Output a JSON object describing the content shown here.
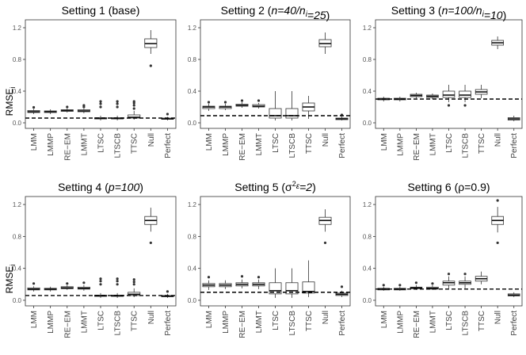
{
  "figure": {
    "ylabel_main": "RMSE",
    "ylabel_sub": "i"
  },
  "chart_data": [
    {
      "type": "boxplot",
      "title_parts": [
        {
          "t": "Setting 1 (base)",
          "s": "n"
        }
      ],
      "categories": [
        "LMM",
        "LMMP",
        "RE−EM",
        "LMMT",
        "LTSC",
        "LTSCB",
        "TTSC",
        "Null",
        "Perfect"
      ],
      "yticks": [
        "0.0",
        "0.4",
        "0.8",
        "1.2"
      ],
      "ylim": [
        -0.07,
        1.3
      ],
      "reference_line": 0.06,
      "boxes": [
        {
          "lo": 0.11,
          "q1": 0.13,
          "med": 0.14,
          "q3": 0.155,
          "hi": 0.175,
          "out": [
            0.195
          ]
        },
        {
          "lo": 0.11,
          "q1": 0.13,
          "med": 0.14,
          "q3": 0.15,
          "hi": 0.17,
          "out": []
        },
        {
          "lo": 0.13,
          "q1": 0.145,
          "med": 0.155,
          "q3": 0.165,
          "hi": 0.18,
          "out": [
            0.2
          ]
        },
        {
          "lo": 0.12,
          "q1": 0.14,
          "med": 0.15,
          "q3": 0.165,
          "hi": 0.18,
          "out": [
            0.2,
            0.22
          ]
        },
        {
          "lo": 0.03,
          "q1": 0.05,
          "med": 0.055,
          "q3": 0.065,
          "hi": 0.09,
          "out": [
            0.2,
            0.24,
            0.27
          ]
        },
        {
          "lo": 0.03,
          "q1": 0.05,
          "med": 0.055,
          "q3": 0.065,
          "hi": 0.09,
          "out": [
            0.2,
            0.24,
            0.27
          ]
        },
        {
          "lo": 0.04,
          "q1": 0.06,
          "med": 0.07,
          "q3": 0.1,
          "hi": 0.15,
          "out": [
            0.18,
            0.22,
            0.25,
            0.27
          ]
        },
        {
          "lo": 0.87,
          "q1": 0.95,
          "med": 1.0,
          "q3": 1.06,
          "hi": 1.17,
          "out": [
            0.72
          ]
        },
        {
          "lo": 0.03,
          "q1": 0.045,
          "med": 0.05,
          "q3": 0.06,
          "hi": 0.075,
          "out": [
            0.11
          ]
        }
      ]
    },
    {
      "type": "boxplot",
      "title_parts": [
        {
          "t": "Setting 2 (",
          "s": "n"
        },
        {
          "t": "n=40/n",
          "s": "i"
        },
        {
          "t": "i",
          "s": "sub"
        },
        {
          "t": "=25",
          "s": "i"
        },
        {
          "t": ")",
          "s": "n"
        }
      ],
      "categories": [
        "LMM",
        "LMMP",
        "RE−EM",
        "LMMT",
        "LTSC",
        "LTSCB",
        "TTSC",
        "Null",
        "Perfect"
      ],
      "yticks": [
        "0.0",
        "0.4",
        "0.8",
        "1.2"
      ],
      "ylim": [
        -0.07,
        1.3
      ],
      "reference_line": 0.09,
      "boxes": [
        {
          "lo": 0.15,
          "q1": 0.18,
          "med": 0.2,
          "q3": 0.21,
          "hi": 0.24,
          "out": [
            0.26
          ]
        },
        {
          "lo": 0.16,
          "q1": 0.18,
          "med": 0.2,
          "q3": 0.21,
          "hi": 0.24,
          "out": [
            0.26
          ]
        },
        {
          "lo": 0.19,
          "q1": 0.21,
          "med": 0.22,
          "q3": 0.235,
          "hi": 0.26,
          "out": [
            0.28
          ]
        },
        {
          "lo": 0.18,
          "q1": 0.2,
          "med": 0.21,
          "q3": 0.23,
          "hi": 0.25,
          "out": [
            0.28
          ]
        },
        {
          "lo": 0.03,
          "q1": 0.06,
          "med": 0.09,
          "q3": 0.18,
          "hi": 0.4,
          "out": []
        },
        {
          "lo": 0.03,
          "q1": 0.06,
          "med": 0.09,
          "q3": 0.18,
          "hi": 0.4,
          "out": []
        },
        {
          "lo": 0.05,
          "q1": 0.15,
          "med": 0.2,
          "q3": 0.25,
          "hi": 0.34,
          "out": []
        },
        {
          "lo": 0.87,
          "q1": 0.96,
          "med": 1.0,
          "q3": 1.05,
          "hi": 1.14,
          "out": []
        },
        {
          "lo": 0.03,
          "q1": 0.04,
          "med": 0.05,
          "q3": 0.06,
          "hi": 0.08,
          "out": [
            0.1
          ]
        }
      ]
    },
    {
      "type": "boxplot",
      "title_parts": [
        {
          "t": "Setting 3 (",
          "s": "n"
        },
        {
          "t": "n=100/n",
          "s": "i"
        },
        {
          "t": "i",
          "s": "sub"
        },
        {
          "t": "=10",
          "s": "i"
        },
        {
          "t": ")",
          "s": "n"
        }
      ],
      "categories": [
        "LMM",
        "LMMP",
        "RE−EM",
        "LMMT",
        "LTSC",
        "LTSCB",
        "TTSC",
        "Null",
        "Perfect"
      ],
      "yticks": [
        "0.0",
        "0.4",
        "0.8",
        "1.2"
      ],
      "ylim": [
        -0.07,
        1.3
      ],
      "reference_line": 0.3,
      "boxes": [
        {
          "lo": 0.27,
          "q1": 0.29,
          "med": 0.3,
          "q3": 0.31,
          "hi": 0.33,
          "out": []
        },
        {
          "lo": 0.27,
          "q1": 0.29,
          "med": 0.3,
          "q3": 0.31,
          "hi": 0.33,
          "out": []
        },
        {
          "lo": 0.31,
          "q1": 0.33,
          "med": 0.345,
          "q3": 0.36,
          "hi": 0.38,
          "out": []
        },
        {
          "lo": 0.3,
          "q1": 0.32,
          "med": 0.335,
          "q3": 0.35,
          "hi": 0.37,
          "out": []
        },
        {
          "lo": 0.26,
          "q1": 0.32,
          "med": 0.35,
          "q3": 0.4,
          "hi": 0.48,
          "out": [
            0.22
          ]
        },
        {
          "lo": 0.26,
          "q1": 0.32,
          "med": 0.35,
          "q3": 0.4,
          "hi": 0.48,
          "out": [
            0.22
          ]
        },
        {
          "lo": 0.31,
          "q1": 0.36,
          "med": 0.39,
          "q3": 0.42,
          "hi": 0.48,
          "out": []
        },
        {
          "lo": 0.93,
          "q1": 0.98,
          "med": 1.01,
          "q3": 1.04,
          "hi": 1.09,
          "out": []
        },
        {
          "lo": 0.02,
          "q1": 0.035,
          "med": 0.05,
          "q3": 0.065,
          "hi": 0.09,
          "out": []
        }
      ]
    },
    {
      "type": "boxplot",
      "title_parts": [
        {
          "t": "Setting 4 (",
          "s": "n"
        },
        {
          "t": "p=100",
          "s": "i"
        },
        {
          "t": ")",
          "s": "n"
        }
      ],
      "categories": [
        "LMM",
        "LMMP",
        "RE−EM",
        "LMMT",
        "LTSC",
        "LTSCB",
        "TTSC",
        "Null",
        "Perfect"
      ],
      "yticks": [
        "0.0",
        "0.4",
        "0.8",
        "1.2"
      ],
      "ylim": [
        -0.07,
        1.3
      ],
      "reference_line": 0.06,
      "boxes": [
        {
          "lo": 0.11,
          "q1": 0.13,
          "med": 0.14,
          "q3": 0.155,
          "hi": 0.175,
          "out": [
            0.21
          ]
        },
        {
          "lo": 0.11,
          "q1": 0.13,
          "med": 0.14,
          "q3": 0.15,
          "hi": 0.17,
          "out": []
        },
        {
          "lo": 0.13,
          "q1": 0.145,
          "med": 0.155,
          "q3": 0.17,
          "hi": 0.19,
          "out": [
            0.21
          ]
        },
        {
          "lo": 0.12,
          "q1": 0.14,
          "med": 0.15,
          "q3": 0.165,
          "hi": 0.19,
          "out": [
            0.22
          ]
        },
        {
          "lo": 0.03,
          "q1": 0.05,
          "med": 0.055,
          "q3": 0.065,
          "hi": 0.09,
          "out": [
            0.2,
            0.24,
            0.27
          ]
        },
        {
          "lo": 0.03,
          "q1": 0.05,
          "med": 0.055,
          "q3": 0.065,
          "hi": 0.09,
          "out": [
            0.2,
            0.24,
            0.27
          ]
        },
        {
          "lo": 0.04,
          "q1": 0.06,
          "med": 0.075,
          "q3": 0.1,
          "hi": 0.15,
          "out": [
            0.2,
            0.23,
            0.26
          ]
        },
        {
          "lo": 0.86,
          "q1": 0.95,
          "med": 1.0,
          "q3": 1.05,
          "hi": 1.16,
          "out": [
            0.72
          ]
        },
        {
          "lo": 0.03,
          "q1": 0.045,
          "med": 0.05,
          "q3": 0.06,
          "hi": 0.08,
          "out": [
            0.11
          ]
        }
      ]
    },
    {
      "type": "boxplot",
      "title_parts": [
        {
          "t": "Setting 5 (σ",
          "s": "n"
        },
        {
          "t": "2",
          "s": "sup"
        },
        {
          "t": "ε",
          "s": "sub"
        },
        {
          "t": "=2",
          "s": "i"
        },
        {
          "t": ")",
          "s": "n"
        }
      ],
      "categories": [
        "LMM",
        "LMMP",
        "RE−EM",
        "LMMT",
        "LTSC",
        "LTSCB",
        "TTSC",
        "Null",
        "Perfect"
      ],
      "yticks": [
        "0.0",
        "0.4",
        "0.8",
        "1.2"
      ],
      "ylim": [
        -0.07,
        1.3
      ],
      "reference_line": 0.1,
      "boxes": [
        {
          "lo": 0.13,
          "q1": 0.17,
          "med": 0.19,
          "q3": 0.21,
          "hi": 0.25,
          "out": [
            0.29
          ]
        },
        {
          "lo": 0.14,
          "q1": 0.17,
          "med": 0.19,
          "q3": 0.21,
          "hi": 0.25,
          "out": []
        },
        {
          "lo": 0.15,
          "q1": 0.18,
          "med": 0.2,
          "q3": 0.22,
          "hi": 0.26,
          "out": [
            0.3
          ]
        },
        {
          "lo": 0.14,
          "q1": 0.18,
          "med": 0.2,
          "q3": 0.22,
          "hi": 0.26,
          "out": [
            0.29
          ]
        },
        {
          "lo": 0.03,
          "q1": 0.08,
          "med": 0.12,
          "q3": 0.22,
          "hi": 0.4,
          "out": []
        },
        {
          "lo": 0.03,
          "q1": 0.08,
          "med": 0.12,
          "q3": 0.22,
          "hi": 0.4,
          "out": []
        },
        {
          "lo": 0.04,
          "q1": 0.09,
          "med": 0.11,
          "q3": 0.23,
          "hi": 0.5,
          "out": []
        },
        {
          "lo": 0.86,
          "q1": 0.95,
          "med": 1.0,
          "q3": 1.04,
          "hi": 1.14,
          "out": [
            0.72
          ]
        },
        {
          "lo": 0.04,
          "q1": 0.06,
          "med": 0.075,
          "q3": 0.09,
          "hi": 0.12,
          "out": [
            0.17
          ]
        }
      ]
    },
    {
      "type": "boxplot",
      "title_parts": [
        {
          "t": "Setting 6 (ρ=0.9)",
          "s": "n"
        }
      ],
      "categories": [
        "LMM",
        "LMMP",
        "RE−EM",
        "LMMT",
        "LTSC",
        "LTSCB",
        "TTSC",
        "Null",
        "Perfect"
      ],
      "yticks": [
        "0.0",
        "0.4",
        "0.8",
        "1.2"
      ],
      "ylim": [
        -0.07,
        1.3
      ],
      "reference_line": 0.14,
      "boxes": [
        {
          "lo": 0.12,
          "q1": 0.13,
          "med": 0.14,
          "q3": 0.15,
          "hi": 0.17,
          "out": [
            0.19
          ]
        },
        {
          "lo": 0.12,
          "q1": 0.13,
          "med": 0.14,
          "q3": 0.15,
          "hi": 0.17,
          "out": [
            0.19
          ]
        },
        {
          "lo": 0.13,
          "q1": 0.145,
          "med": 0.155,
          "q3": 0.165,
          "hi": 0.19,
          "out": [
            0.22
          ]
        },
        {
          "lo": 0.13,
          "q1": 0.14,
          "med": 0.15,
          "q3": 0.165,
          "hi": 0.19,
          "out": [
            0.21
          ]
        },
        {
          "lo": 0.15,
          "q1": 0.19,
          "med": 0.22,
          "q3": 0.24,
          "hi": 0.3,
          "out": [
            0.33
          ]
        },
        {
          "lo": 0.15,
          "q1": 0.2,
          "med": 0.22,
          "q3": 0.24,
          "hi": 0.3,
          "out": [
            0.33
          ]
        },
        {
          "lo": 0.2,
          "q1": 0.24,
          "med": 0.27,
          "q3": 0.3,
          "hi": 0.36,
          "out": []
        },
        {
          "lo": 0.85,
          "q1": 0.95,
          "med": 1.0,
          "q3": 1.05,
          "hi": 1.17,
          "out": [
            0.72,
            1.25
          ]
        },
        {
          "lo": 0.04,
          "q1": 0.055,
          "med": 0.065,
          "q3": 0.08,
          "hi": 0.1,
          "out": []
        }
      ]
    }
  ]
}
